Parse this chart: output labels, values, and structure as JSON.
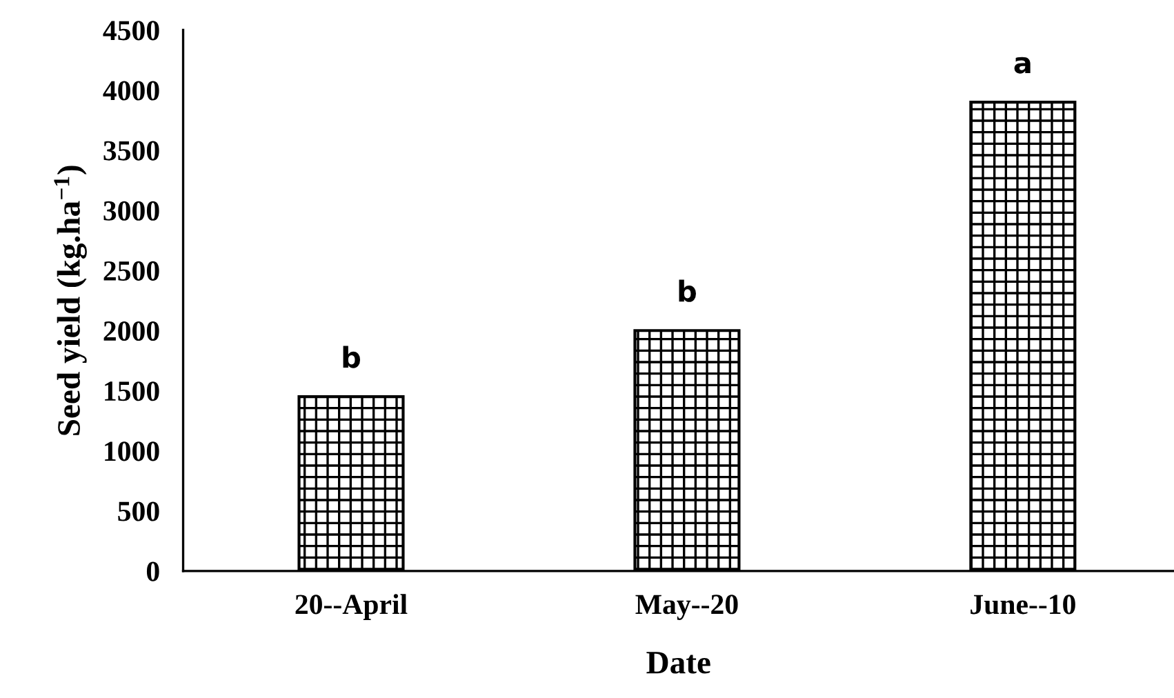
{
  "chart_data": {
    "type": "bar",
    "xlabel": "Date",
    "ylabel": "Seed yield (kg.ha$^{−1}$)",
    "categories": [
      "20--April",
      "May--20",
      "June--10"
    ],
    "values": [
      1450,
      2000,
      3900
    ],
    "color": "#000000",
    "ylim": [
      0,
      4500
    ],
    "yticks": [
      0,
      500,
      1000,
      1500,
      2000,
      2500,
      3000,
      3500,
      4000,
      4500
    ],
    "annotations": [
      {
        "text": "b",
        "x": "20--April",
        "y": 1450
      },
      {
        "text": "b",
        "x": "May--20",
        "y": 2000
      },
      {
        "text": "a",
        "x": "June--10",
        "y": 3900
      }
    ]
  }
}
